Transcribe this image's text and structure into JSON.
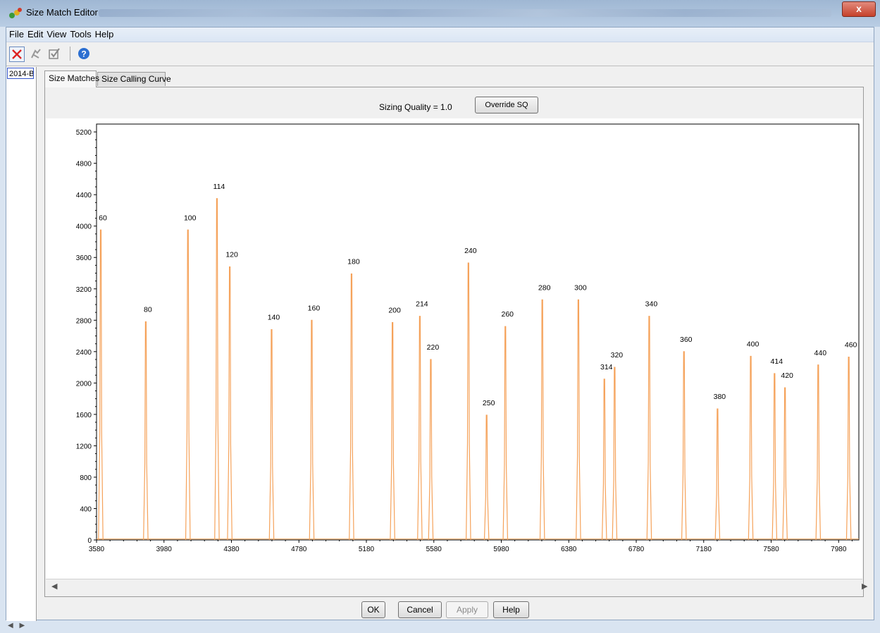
{
  "window": {
    "title": "Size Match Editor",
    "close_glyph": "x"
  },
  "menu": [
    "File",
    "Edit",
    "View",
    "Tools",
    "Help"
  ],
  "toolbar_icons": [
    "delete-match-icon",
    "clear-icon",
    "check-icon",
    "help-icon"
  ],
  "samples": [
    "2014-B"
  ],
  "tabs": [
    {
      "label": "Size Matches",
      "active": true
    },
    {
      "label": "Size Calling Curve",
      "active": false
    }
  ],
  "sizing_quality": {
    "label": "Sizing Quality = 1.0",
    "button": "Override SQ"
  },
  "buttons": {
    "ok": "OK",
    "cancel": "Cancel",
    "apply": "Apply",
    "help": "Help"
  },
  "colors": {
    "trace": "#f5a25a",
    "accent": "#3355cc"
  },
  "chart_data": {
    "type": "line",
    "title": "",
    "xlabel": "",
    "ylabel": "",
    "xlim": [
      3580,
      8100
    ],
    "ylim": [
      0,
      5300
    ],
    "xticks": [
      3580,
      3980,
      4380,
      4780,
      5180,
      5580,
      5980,
      6380,
      6780,
      7180,
      7580,
      7980
    ],
    "yticks": [
      0,
      400,
      800,
      1200,
      1600,
      2000,
      2400,
      2800,
      3200,
      3600,
      4000,
      4400,
      4800,
      5200
    ],
    "peaks": [
      {
        "label": "60",
        "x": 3605,
        "y": 3950
      },
      {
        "label": "80",
        "x": 3872,
        "y": 2780
      },
      {
        "label": "100",
        "x": 4122,
        "y": 3950
      },
      {
        "label": "114",
        "x": 4294,
        "y": 4350
      },
      {
        "label": "120",
        "x": 4370,
        "y": 3480
      },
      {
        "label": "140",
        "x": 4618,
        "y": 2680
      },
      {
        "label": "160",
        "x": 4856,
        "y": 2800
      },
      {
        "label": "180",
        "x": 5092,
        "y": 3390
      },
      {
        "label": "200",
        "x": 5335,
        "y": 2770
      },
      {
        "label": "214",
        "x": 5497,
        "y": 2850
      },
      {
        "label": "220",
        "x": 5562,
        "y": 2300
      },
      {
        "label": "240",
        "x": 5785,
        "y": 3530
      },
      {
        "label": "250",
        "x": 5893,
        "y": 1590
      },
      {
        "label": "260",
        "x": 6004,
        "y": 2720
      },
      {
        "label": "280",
        "x": 6223,
        "y": 3060
      },
      {
        "label": "300",
        "x": 6437,
        "y": 3060
      },
      {
        "label": "314",
        "x": 6591,
        "y": 2050
      },
      {
        "label": "320",
        "x": 6652,
        "y": 2200
      },
      {
        "label": "340",
        "x": 6857,
        "y": 2850
      },
      {
        "label": "360",
        "x": 7063,
        "y": 2400
      },
      {
        "label": "380",
        "x": 7262,
        "y": 1670
      },
      {
        "label": "400",
        "x": 7459,
        "y": 2340
      },
      {
        "label": "414",
        "x": 7600,
        "y": 2120
      },
      {
        "label": "420",
        "x": 7662,
        "y": 1940
      },
      {
        "label": "440",
        "x": 7859,
        "y": 2230
      },
      {
        "label": "460",
        "x": 8040,
        "y": 2330
      }
    ]
  }
}
